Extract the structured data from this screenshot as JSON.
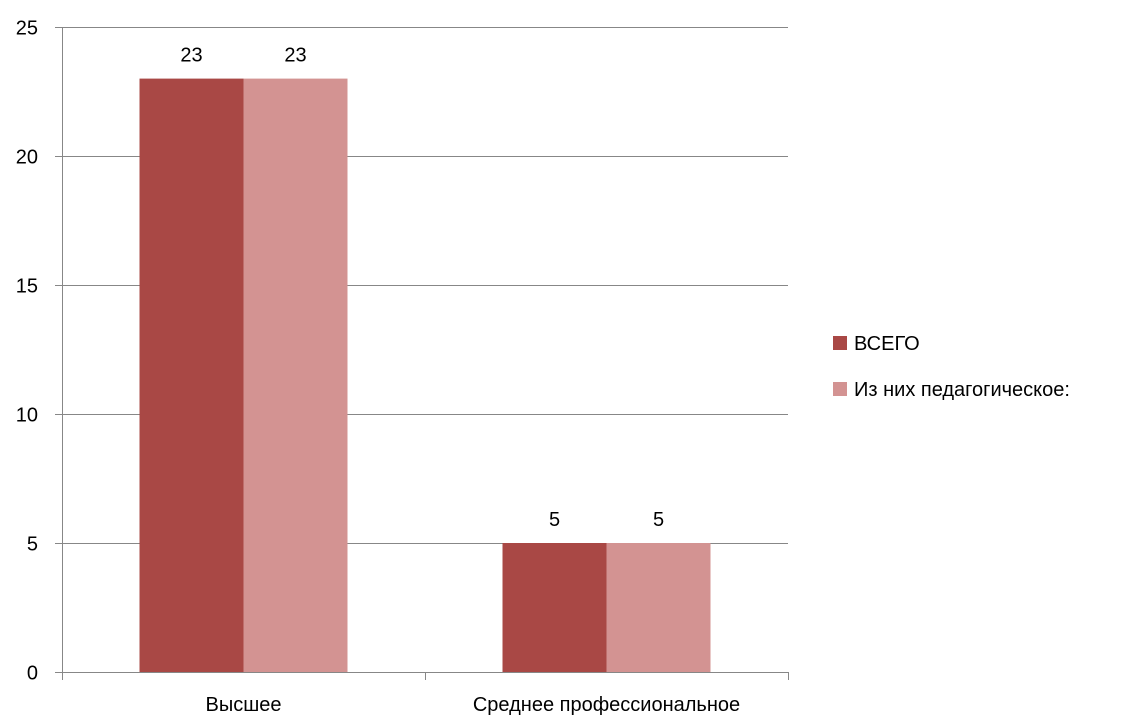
{
  "chart_data": {
    "type": "bar",
    "categories": [
      "Высшее",
      "Среднее профессиональное"
    ],
    "series": [
      {
        "name": "ВСЕГО",
        "values": [
          23,
          5
        ],
        "color": "#A94845"
      },
      {
        "name": "Из них педагогическое:",
        "values": [
          23,
          5
        ],
        "color": "#D39392"
      }
    ],
    "title": "",
    "xlabel": "",
    "ylabel": "",
    "ylim": [
      0,
      25
    ],
    "yticks": [
      0,
      5,
      10,
      15,
      20,
      25
    ],
    "grid": true,
    "legend_position": "right",
    "data_labels": true
  }
}
